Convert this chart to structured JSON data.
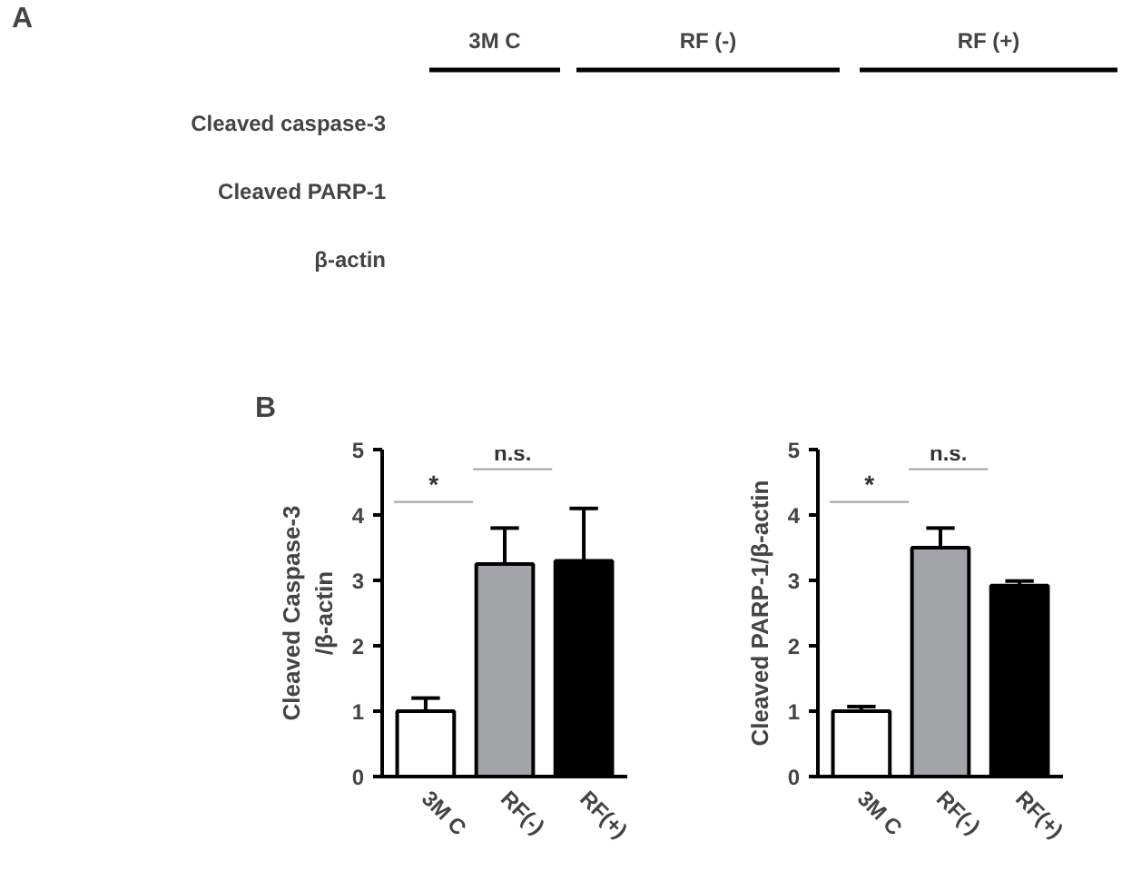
{
  "chart_data": [
    {
      "type": "other",
      "title": "A",
      "annotations": [
        "3M C",
        "RF (-)",
        "RF (+)",
        "Cleaved caspase-3",
        "Cleaved PARP-1",
        "β-actin"
      ]
    },
    {
      "type": "bar",
      "title": "B",
      "categories": [
        "3M C",
        "RF(-)",
        "RF(+)"
      ],
      "values": [
        1.0,
        3.25,
        3.3
      ],
      "colors": [
        "#ffffff",
        "#a3a3ab",
        "#000000"
      ],
      "errors": [
        [
          1.0,
          1.2
        ],
        [
          3.25,
          3.8
        ],
        [
          3.3,
          4.1
        ]
      ],
      "ylabel": "Cleaved Caspase-3\n/β-actin",
      "ylim": [
        0,
        5
      ],
      "yticks": [
        0,
        1,
        2,
        3,
        4,
        5
      ],
      "annotations": [
        "*",
        "n.s."
      ]
    },
    {
      "type": "bar",
      "categories": [
        "3M C",
        "RF(-)",
        "RF(+)"
      ],
      "values": [
        1.0,
        3.5,
        2.92
      ],
      "colors": [
        "#ffffff",
        "#a3a3ab",
        "#000000"
      ],
      "errors": [
        [
          1.0,
          1.07
        ],
        [
          3.5,
          3.8
        ],
        [
          2.92,
          2.99
        ]
      ],
      "ylabel": "Cleaved PARP-1/β-actin",
      "ylim": [
        0,
        5
      ],
      "yticks": [
        0,
        1,
        2,
        3,
        4,
        5
      ],
      "annotations": [
        "*",
        "n.s."
      ]
    }
  ]
}
